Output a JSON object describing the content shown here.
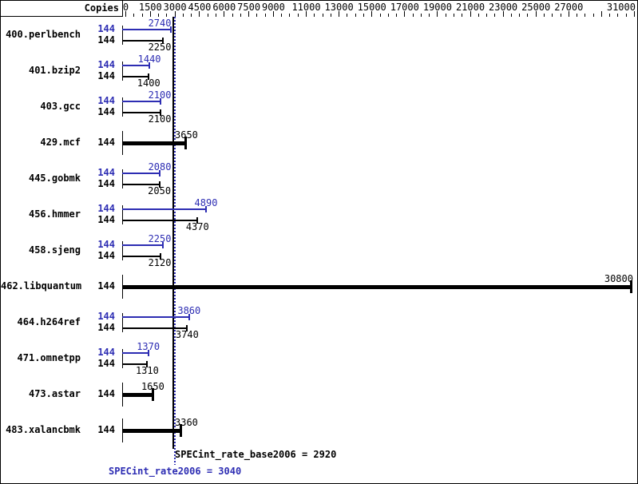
{
  "header": {
    "copies_column_header": "Copies"
  },
  "colors": {
    "peak_blue": "#2d2db3",
    "base_black": "#000000",
    "background": "#ffffff"
  },
  "x_axis": {
    "min": 0,
    "max": 31000,
    "minor_tick_interval": 500,
    "labeled_ticks": [
      0,
      1500,
      3000,
      4500,
      6000,
      7500,
      9000,
      11000,
      13000,
      15000,
      17000,
      19000,
      21000,
      23000,
      25000,
      27000,
      31000
    ],
    "unlabeled_major_ticks": [
      29000
    ]
  },
  "chart_data": {
    "type": "bar",
    "orientation": "horizontal",
    "title": "",
    "xlabel": "",
    "ylabel": "",
    "xlim": [
      0,
      31000
    ],
    "grid": false,
    "legend": "none",
    "categories": [
      "400.perlbench",
      "401.bzip2",
      "403.gcc",
      "429.mcf",
      "445.gobmk",
      "456.hmmer",
      "458.sjeng",
      "462.libquantum",
      "464.h264ref",
      "471.omnetpp",
      "473.astar",
      "483.xalancbmk"
    ],
    "series": [
      {
        "name": "peak",
        "values": [
          2740,
          1440,
          2100,
          3650,
          2080,
          4890,
          2250,
          30800,
          3860,
          1370,
          1650,
          3360
        ]
      },
      {
        "name": "base",
        "values": [
          2250,
          1400,
          2100,
          3650,
          2050,
          4370,
          2120,
          30800,
          3740,
          1310,
          1650,
          3360
        ]
      }
    ],
    "rows": [
      {
        "name": "400.perlbench",
        "bars": [
          {
            "kind": "peak",
            "copies": "144",
            "value": 2740
          },
          {
            "kind": "base",
            "copies": "144",
            "value": 2250
          }
        ]
      },
      {
        "name": "401.bzip2",
        "bars": [
          {
            "kind": "peak",
            "copies": "144",
            "value": 1440
          },
          {
            "kind": "base",
            "copies": "144",
            "value": 1400
          }
        ]
      },
      {
        "name": "403.gcc",
        "bars": [
          {
            "kind": "peak",
            "copies": "144",
            "value": 2100
          },
          {
            "kind": "base",
            "copies": "144",
            "value": 2100
          }
        ]
      },
      {
        "name": "429.mcf",
        "bars": [
          {
            "kind": "single",
            "copies": "144",
            "value": 3650
          }
        ]
      },
      {
        "name": "445.gobmk",
        "bars": [
          {
            "kind": "peak",
            "copies": "144",
            "value": 2080
          },
          {
            "kind": "base",
            "copies": "144",
            "value": 2050
          }
        ]
      },
      {
        "name": "456.hmmer",
        "bars": [
          {
            "kind": "peak",
            "copies": "144",
            "value": 4890
          },
          {
            "kind": "base",
            "copies": "144",
            "value": 4370
          }
        ]
      },
      {
        "name": "458.sjeng",
        "bars": [
          {
            "kind": "peak",
            "copies": "144",
            "value": 2250
          },
          {
            "kind": "base",
            "copies": "144",
            "value": 2120
          }
        ]
      },
      {
        "name": "462.libquantum",
        "bars": [
          {
            "kind": "single",
            "copies": "144",
            "value": 30800
          }
        ]
      },
      {
        "name": "464.h264ref",
        "bars": [
          {
            "kind": "peak",
            "copies": "144",
            "value": 3860
          },
          {
            "kind": "base",
            "copies": "144",
            "value": 3740
          }
        ]
      },
      {
        "name": "471.omnetpp",
        "bars": [
          {
            "kind": "peak",
            "copies": "144",
            "value": 1370
          },
          {
            "kind": "base",
            "copies": "144",
            "value": 1310
          }
        ]
      },
      {
        "name": "473.astar",
        "bars": [
          {
            "kind": "single",
            "copies": "144",
            "value": 1650
          }
        ]
      },
      {
        "name": "483.xalancbmk",
        "bars": [
          {
            "kind": "single",
            "copies": "144",
            "value": 3360
          }
        ]
      }
    ],
    "reference_lines": [
      {
        "name": "base_median",
        "value": 2920,
        "style": "solid",
        "color": "#000000"
      },
      {
        "name": "peak_median",
        "value": 3040,
        "style": "dotted",
        "color": "#2d2db3"
      }
    ]
  },
  "summary": {
    "base_text": "SPECint_rate_base2006 = 2920",
    "base_value": 2920,
    "peak_text": "SPECint_rate2006 = 3040",
    "peak_value": 3040
  }
}
